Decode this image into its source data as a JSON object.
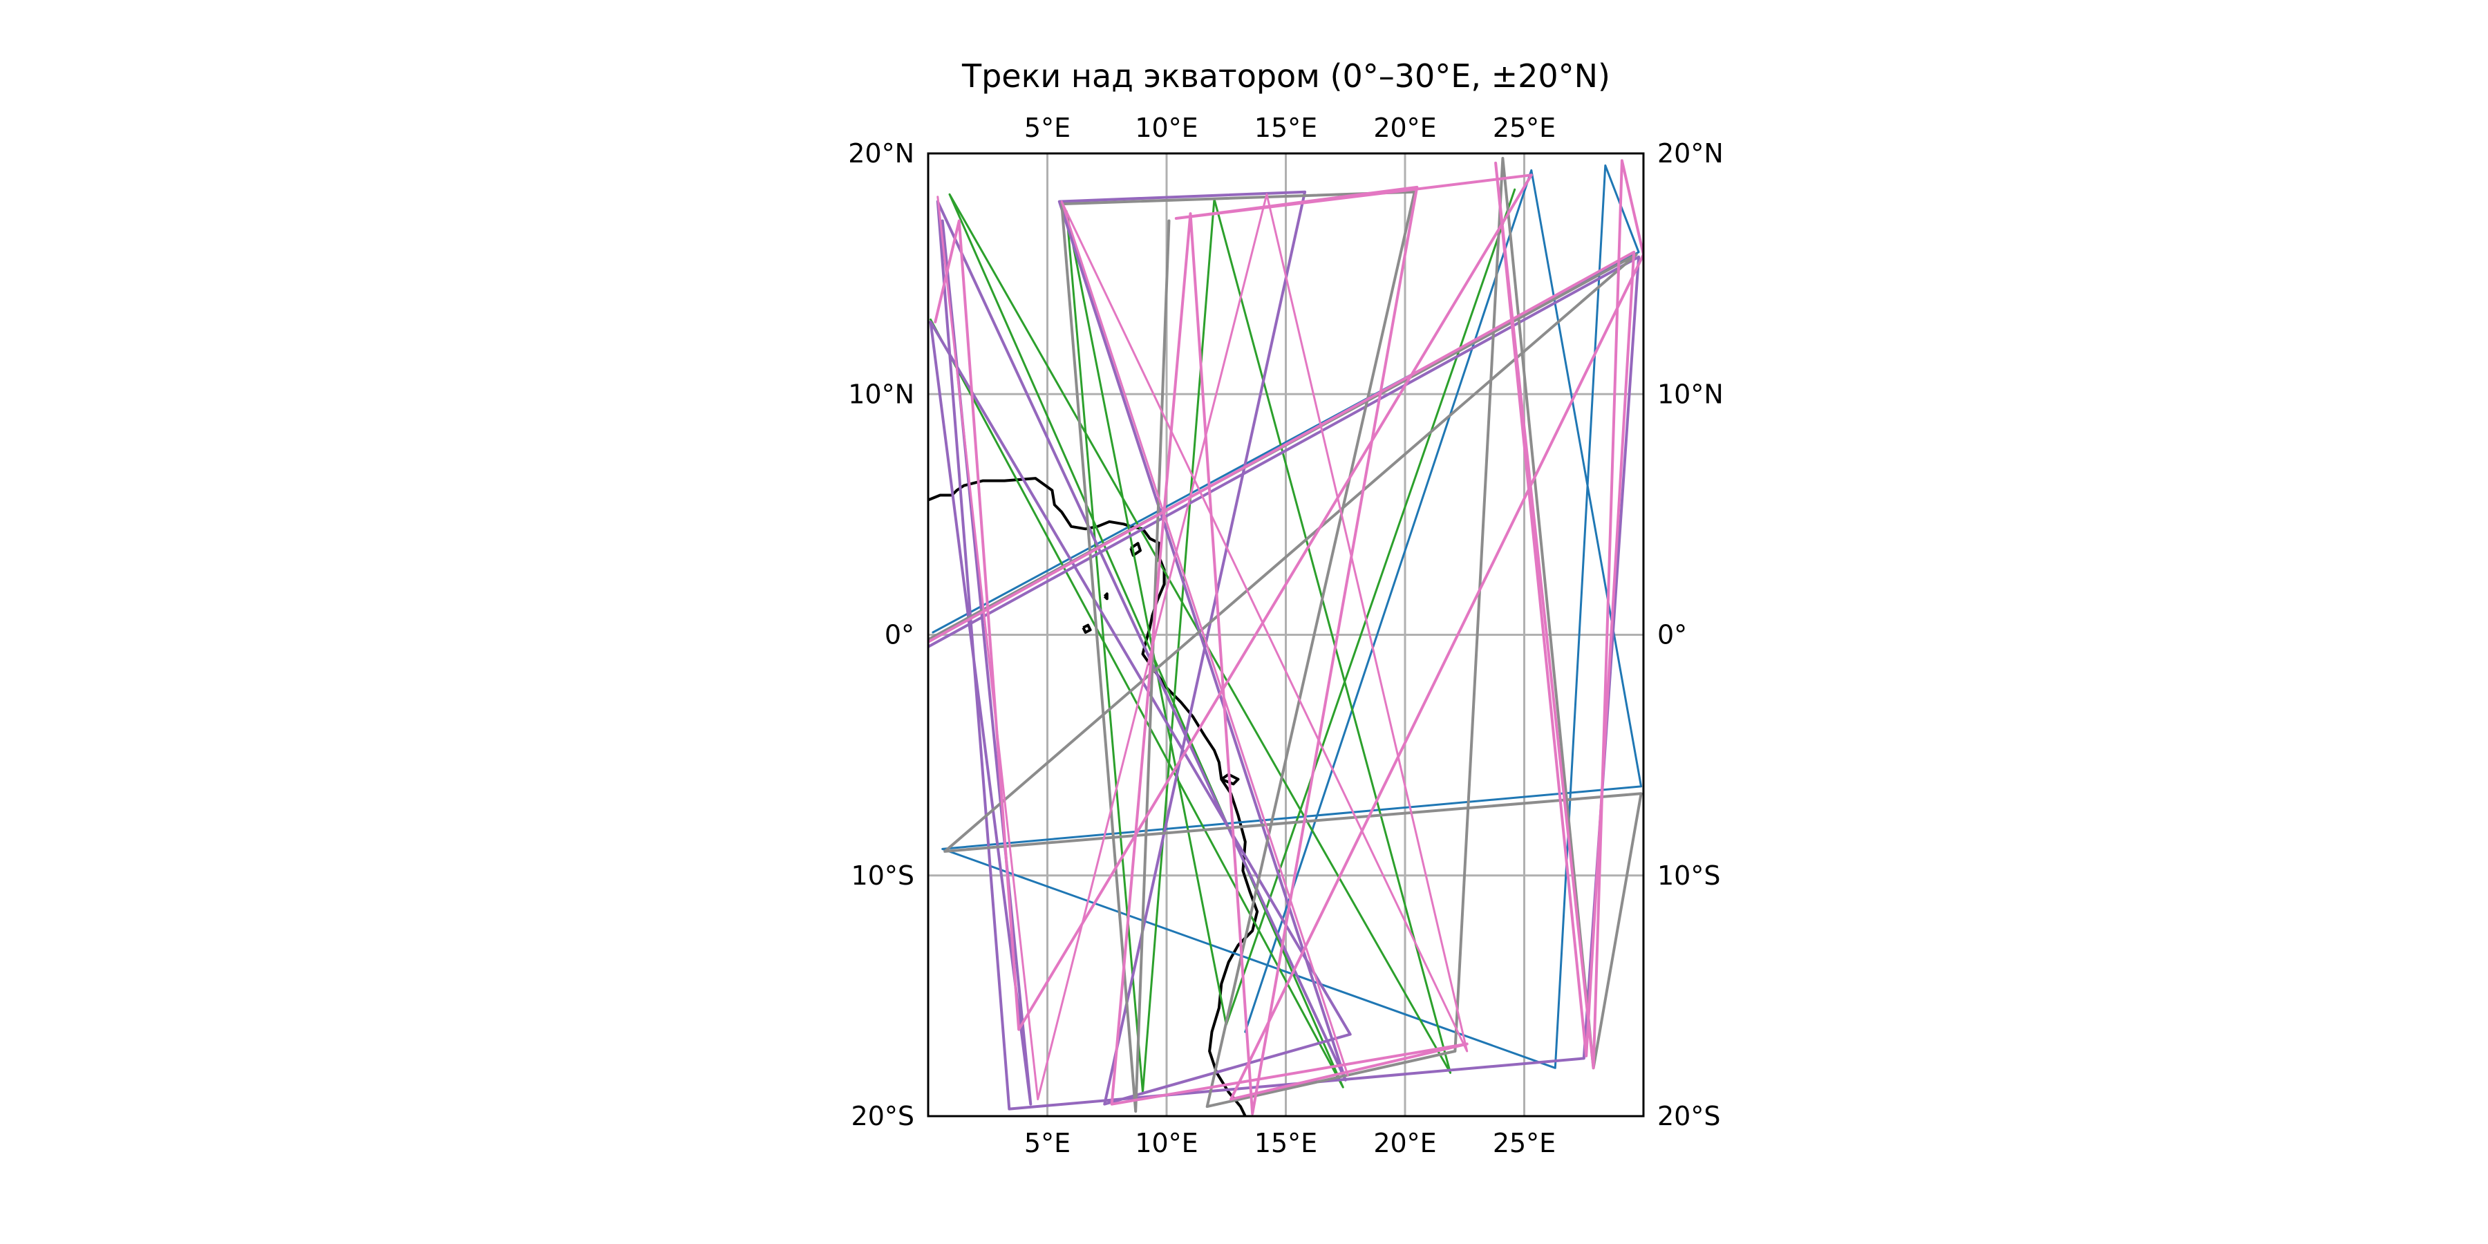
{
  "title": "Треки над экватором (0°–30°E, ±20°N)",
  "map": {
    "extent": {
      "lon": [
        0,
        30
      ],
      "lat": [
        -20,
        20
      ]
    },
    "gridlines": true,
    "grid_color": "#b0b0b0",
    "equator_color": "#a8a8a0",
    "lon_labels": [
      {
        "lon": 5,
        "text": "5°E"
      },
      {
        "lon": 10,
        "text": "10°E"
      },
      {
        "lon": 15,
        "text": "15°E"
      },
      {
        "lon": 20,
        "text": "20°E"
      },
      {
        "lon": 25,
        "text": "25°E"
      }
    ],
    "lat_labels": [
      {
        "lat": 20,
        "text": "20°N"
      },
      {
        "lat": 10,
        "text": "10°N"
      },
      {
        "lat": 0,
        "text": "0°"
      },
      {
        "lat": -10,
        "text": "10°S"
      },
      {
        "lat": -20,
        "text": "20°S"
      }
    ],
    "coastline": [
      [
        0,
        5.6
      ],
      [
        0.5,
        5.8
      ],
      [
        1,
        5.8
      ],
      [
        1.2,
        6.0
      ],
      [
        1.5,
        6.2
      ],
      [
        2.3,
        6.4
      ],
      [
        3.2,
        6.4
      ],
      [
        4.5,
        6.5
      ],
      [
        5.2,
        6.0
      ],
      [
        5.3,
        5.4
      ],
      [
        5.6,
        5.1
      ],
      [
        6.0,
        4.5
      ],
      [
        6.6,
        4.4
      ],
      [
        7.1,
        4.5
      ],
      [
        7.6,
        4.7
      ],
      [
        8.2,
        4.6
      ],
      [
        8.5,
        4.5
      ],
      [
        9.0,
        4.4
      ],
      [
        9.3,
        4.0
      ],
      [
        9.7,
        3.8
      ],
      [
        9.7,
        3.2
      ],
      [
        9.9,
        2.7
      ],
      [
        9.9,
        2.1
      ],
      [
        9.6,
        1.4
      ],
      [
        9.4,
        0.8
      ],
      [
        9.3,
        0.3
      ],
      [
        9.1,
        -0.4
      ],
      [
        9.0,
        -0.8
      ],
      [
        9.5,
        -1.5
      ],
      [
        10.0,
        -2.2
      ],
      [
        10.6,
        -2.8
      ],
      [
        11.1,
        -3.4
      ],
      [
        11.6,
        -4.2
      ],
      [
        12.0,
        -4.8
      ],
      [
        12.2,
        -5.3
      ],
      [
        12.3,
        -6.0
      ],
      [
        12.7,
        -6.6
      ],
      [
        13.0,
        -7.5
      ],
      [
        13.3,
        -8.6
      ],
      [
        13.2,
        -9.8
      ],
      [
        13.5,
        -10.7
      ],
      [
        13.8,
        -11.5
      ],
      [
        13.6,
        -12.3
      ],
      [
        13.0,
        -12.9
      ],
      [
        12.6,
        -13.6
      ],
      [
        12.3,
        -14.5
      ],
      [
        12.2,
        -15.5
      ],
      [
        11.9,
        -16.5
      ],
      [
        11.8,
        -17.3
      ],
      [
        12.1,
        -18.2
      ],
      [
        12.6,
        -19.0
      ],
      [
        13.1,
        -19.6
      ],
      [
        13.3,
        -20.0
      ]
    ],
    "islands": [
      [
        [
          6.5,
          0.3
        ],
        [
          6.7,
          0.4
        ],
        [
          6.8,
          0.2
        ],
        [
          6.6,
          0.1
        ],
        [
          6.5,
          0.3
        ]
      ],
      [
        [
          8.5,
          3.6
        ],
        [
          8.8,
          3.8
        ],
        [
          8.9,
          3.5
        ],
        [
          8.6,
          3.3
        ],
        [
          8.5,
          3.6
        ]
      ],
      [
        [
          7.4,
          1.6
        ],
        [
          7.5,
          1.7
        ],
        [
          7.5,
          1.5
        ],
        [
          7.4,
          1.6
        ]
      ],
      [
        [
          12.3,
          -6.0
        ],
        [
          12.8,
          -6.2
        ],
        [
          13.0,
          -6.0
        ],
        [
          12.6,
          -5.8
        ],
        [
          12.3,
          -6.0
        ]
      ]
    ],
    "tracks": [
      {
        "color": "#1f77b4",
        "width": 3,
        "points": [
          [
            0.2,
            0.1
          ],
          [
            29.8,
            15.9
          ],
          [
            28.4,
            19.5
          ],
          [
            26.3,
            -18.0
          ],
          [
            0.6,
            -8.9
          ],
          [
            29.9,
            -6.3
          ],
          [
            25.3,
            19.3
          ],
          [
            13.3,
            -16.5
          ]
        ]
      },
      {
        "color": "#2ca02c",
        "width": 3,
        "points": [
          [
            0.1,
            13.1
          ],
          [
            17.4,
            -18.8
          ],
          [
            0.9,
            18.3
          ],
          [
            21.9,
            -18.2
          ],
          [
            12.0,
            18.1
          ],
          [
            9.0,
            -19.0
          ],
          [
            5.8,
            17.6
          ],
          [
            12.5,
            -16.2
          ],
          [
            24.6,
            18.5
          ]
        ]
      },
      {
        "color": "#9467bd",
        "width": 4,
        "points": [
          [
            0.0,
            -0.5
          ],
          [
            29.8,
            15.7
          ],
          [
            27.5,
            -17.6
          ],
          [
            3.4,
            -19.7
          ],
          [
            0.4,
            18.0
          ],
          [
            17.5,
            -18.5
          ],
          [
            5.5,
            18.0
          ],
          [
            15.8,
            18.4
          ],
          [
            7.4,
            -19.5
          ],
          [
            17.7,
            -16.6
          ],
          [
            0.1,
            13.0
          ],
          [
            4.3,
            -19.5
          ],
          [
            0.6,
            17.2
          ]
        ]
      },
      {
        "color": "#8c8c8c",
        "width": 4,
        "points": [
          [
            10.1,
            17.2
          ],
          [
            8.7,
            -19.8
          ],
          [
            5.6,
            17.9
          ],
          [
            20.4,
            18.4
          ],
          [
            11.7,
            -19.6
          ],
          [
            22.1,
            -17.3
          ],
          [
            24.1,
            19.8
          ],
          [
            27.9,
            -18.0
          ],
          [
            29.9,
            -6.6
          ],
          [
            0.7,
            -9.0
          ],
          [
            29.7,
            15.8
          ],
          [
            0.0,
            -0.2
          ]
        ]
      },
      {
        "color": "#e377c2",
        "width": 4,
        "points": [
          [
            0.0,
            -0.3
          ],
          [
            29.6,
            15.9
          ],
          [
            27.6,
            -17.5
          ],
          [
            23.8,
            19.6
          ],
          [
            27.9,
            -18.0
          ],
          [
            29.1,
            19.7
          ],
          [
            30.0,
            15.8
          ],
          [
            12.7,
            -19.3
          ],
          [
            22.6,
            -17.0
          ],
          [
            7.7,
            -19.5
          ],
          [
            11.0,
            17.5
          ],
          [
            13.6,
            -19.9
          ],
          [
            20.5,
            18.6
          ],
          [
            10.4,
            17.3
          ],
          [
            25.3,
            19.1
          ],
          [
            3.8,
            -16.4
          ],
          [
            1.3,
            17.2
          ],
          [
            0.3,
            13.0
          ]
        ]
      },
      {
        "color": "#e377c2",
        "width": 3,
        "points": [
          [
            0.4,
            18.2
          ],
          [
            4.6,
            -19.3
          ],
          [
            14.2,
            18.3
          ],
          [
            22.6,
            -17.3
          ],
          [
            5.6,
            18.0
          ],
          [
            17.6,
            -18.3
          ]
        ]
      }
    ]
  }
}
